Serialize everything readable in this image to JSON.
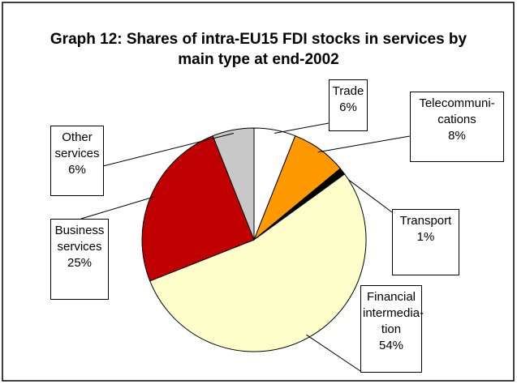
{
  "chart_data": {
    "type": "pie",
    "title": "Graph 12: Shares of intra-EU15 FDI stocks in services by main type at end-2002",
    "categories": [
      "Trade",
      "Telecommuni-\ncations",
      "Transport",
      "Financial\nintermedia-\ntion",
      "Business\nservices",
      "Other\nservices"
    ],
    "values": [
      6,
      8,
      1,
      54,
      25,
      6
    ],
    "value_labels": [
      "6%",
      "8%",
      "1%",
      "54%",
      "25%",
      "6%"
    ],
    "colors": [
      "#ffffff",
      "#ff9900",
      "#000000",
      "#ffffcc",
      "#c00000",
      "#c8c8c8"
    ]
  }
}
